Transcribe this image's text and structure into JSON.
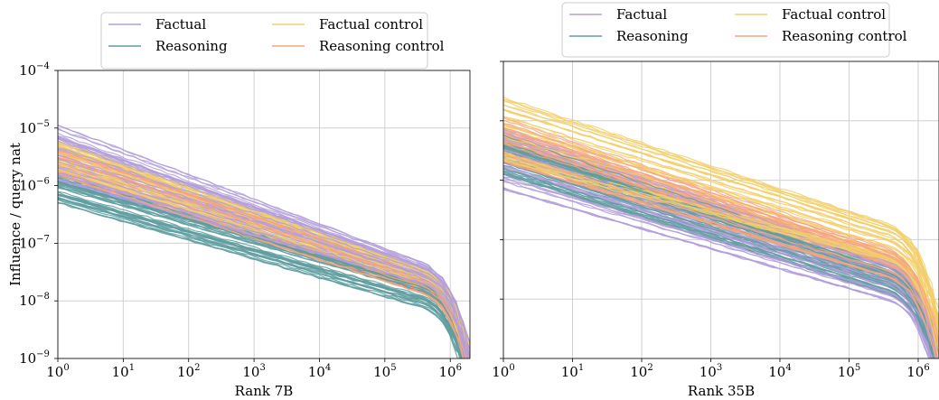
{
  "chart_data": [
    {
      "type": "line",
      "xlabel": "Rank 7B",
      "ylabel": "Influence / query nat",
      "xscale": "log",
      "yscale": "log",
      "xlim": [
        1,
        2000000
      ],
      "ylim": [
        1e-09,
        0.0001
      ],
      "x_ticks": [
        {
          "base": "10",
          "exp": "0"
        },
        {
          "base": "10",
          "exp": "1"
        },
        {
          "base": "10",
          "exp": "2"
        },
        {
          "base": "10",
          "exp": "3"
        },
        {
          "base": "10",
          "exp": "4"
        },
        {
          "base": "10",
          "exp": "5"
        },
        {
          "base": "10",
          "exp": "6"
        }
      ],
      "y_ticks": [
        {
          "base": "10",
          "exp": "−9"
        },
        {
          "base": "10",
          "exp": "−8"
        },
        {
          "base": "10",
          "exp": "−7"
        },
        {
          "base": "10",
          "exp": "−6"
        },
        {
          "base": "10",
          "exp": "−5"
        },
        {
          "base": "10",
          "exp": "−4"
        }
      ],
      "grid": true,
      "legend_position": "top-center, outside",
      "series": [
        {
          "name": "Factual",
          "color": "#b39ddb",
          "count": 40,
          "start_range": [
            1.2e-06,
            1.4e-05
          ],
          "end_range": [
            6e-09,
            2e-08
          ],
          "slope": -0.4
        },
        {
          "name": "Reasoning",
          "color": "#5f9ea0",
          "count": 40,
          "start_range": [
            5e-07,
            1.5e-06
          ],
          "end_range": [
            2e-09,
            1e-08
          ],
          "slope": -0.4
        },
        {
          "name": "Factual control",
          "color": "#f2cf6b",
          "count": 40,
          "start_range": [
            1.5e-06,
            6e-06
          ],
          "end_range": [
            6e-09,
            1.5e-08
          ],
          "slope": -0.4
        },
        {
          "name": "Reasoning control",
          "color": "#f4a582",
          "count": 40,
          "start_range": [
            1.5e-06,
            5e-06
          ],
          "end_range": [
            4e-09,
            1.2e-08
          ],
          "slope": -0.4
        }
      ]
    },
    {
      "type": "line",
      "xlabel": "Rank 35B",
      "ylabel": "",
      "xscale": "log",
      "yscale": "log",
      "xlim": [
        1,
        2000000
      ],
      "ylim": [
        1e-09,
        0.0001
      ],
      "x_ticks": [
        {
          "base": "10",
          "exp": "0"
        },
        {
          "base": "10",
          "exp": "1"
        },
        {
          "base": "10",
          "exp": "2"
        },
        {
          "base": "10",
          "exp": "3"
        },
        {
          "base": "10",
          "exp": "4"
        },
        {
          "base": "10",
          "exp": "5"
        },
        {
          "base": "10",
          "exp": "6"
        }
      ],
      "grid": true,
      "legend_position": "top-center, outside",
      "series": [
        {
          "name": "Factual",
          "color": "#b39ddb",
          "count": 40,
          "start_range": [
            7e-07,
            8e-06
          ],
          "end_range": [
            2e-09,
            2e-08
          ],
          "slope": -0.4
        },
        {
          "name": "Reasoning",
          "color": "#5f9ea0",
          "count": 40,
          "start_range": [
            1.2e-06,
            6e-06
          ],
          "end_range": [
            3e-09,
            1.5e-08
          ],
          "slope": -0.4
        },
        {
          "name": "Factual control",
          "color": "#f2cf6b",
          "count": 40,
          "start_range": [
            2e-06,
            2.8e-05
          ],
          "end_range": [
            1e-08,
            8e-08
          ],
          "slope": -0.35
        },
        {
          "name": "Reasoning control",
          "color": "#f4a582",
          "count": 40,
          "start_range": [
            2e-06,
            1.2e-05
          ],
          "end_range": [
            6e-09,
            3e-08
          ],
          "slope": -0.37
        }
      ]
    }
  ]
}
